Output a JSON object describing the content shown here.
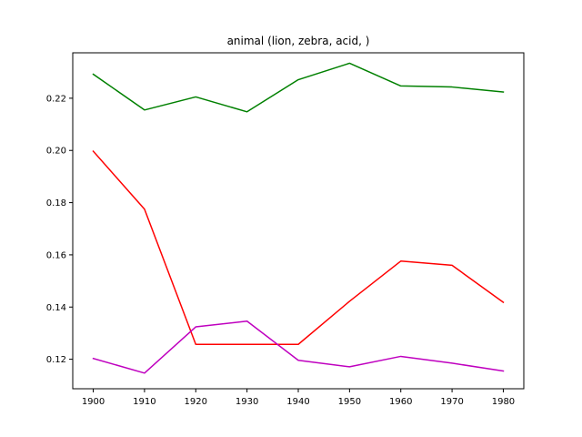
{
  "chart_data": {
    "type": "line",
    "title": "animal (lion, zebra, acid, )",
    "xlabel": "",
    "ylabel": "",
    "x": [
      1900,
      1910,
      1920,
      1930,
      1940,
      1950,
      1960,
      1970,
      1980
    ],
    "xticks": [
      "1900",
      "1910",
      "1920",
      "1930",
      "1940",
      "1950",
      "1960",
      "1970",
      "1980"
    ],
    "xlim": [
      1896,
      1984
    ],
    "ylim": [
      0.1087,
      0.2374
    ],
    "yticks": [
      "0.12",
      "0.14",
      "0.16",
      "0.18",
      "0.20",
      "0.22"
    ],
    "ytick_values": [
      0.12,
      0.14,
      0.16,
      0.18,
      0.2,
      0.22
    ],
    "grid": false,
    "legend": "none",
    "series": [
      {
        "color": "#008000",
        "values": [
          0.2292,
          0.2155,
          0.2205,
          0.2148,
          0.2271,
          0.2334,
          0.2247,
          0.2243,
          0.2224
        ]
      },
      {
        "color": "#ff0000",
        "values": [
          0.1997,
          0.1775,
          0.1257,
          0.1257,
          0.1257,
          0.1422,
          0.1576,
          0.156,
          0.1418
        ]
      },
      {
        "color": "#bf00bf",
        "values": [
          0.1203,
          0.1147,
          0.1324,
          0.1346,
          0.1196,
          0.1171,
          0.1211,
          0.1185,
          0.1155
        ]
      }
    ]
  }
}
